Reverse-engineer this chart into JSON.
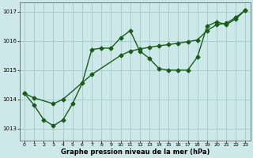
{
  "xlabel": "Graphe pression niveau de la mer (hPa)",
  "ylabel": "",
  "bg_color": "#cce8e8",
  "grid_color": "#aacccc",
  "line_color": "#1a5c1a",
  "marker": "D",
  "markersize": 2.5,
  "linewidth": 1.0,
  "xlim": [
    -0.5,
    23.5
  ],
  "ylim": [
    1012.6,
    1017.3
  ],
  "xticks": [
    0,
    1,
    2,
    3,
    4,
    5,
    6,
    7,
    8,
    9,
    10,
    11,
    12,
    13,
    14,
    15,
    16,
    17,
    18,
    19,
    20,
    21,
    22,
    23
  ],
  "yticks": [
    1013,
    1014,
    1015,
    1016,
    1017
  ],
  "line1_x": [
    0,
    1,
    2,
    3,
    4,
    5,
    6,
    7,
    8,
    9,
    10,
    11,
    12,
    13,
    14,
    15,
    16,
    17,
    18,
    19,
    20,
    21,
    22,
    23
  ],
  "line1_y": [
    1014.2,
    1013.8,
    1013.3,
    1013.1,
    1013.3,
    1013.85,
    1014.55,
    1015.7,
    1015.75,
    1015.75,
    1016.1,
    1016.35,
    1015.65,
    1015.4,
    1015.05,
    1015.0,
    1015.0,
    1015.0,
    1015.45,
    1016.5,
    1016.65,
    1016.55,
    1016.75,
    1017.05
  ],
  "line2_x": [
    0,
    1,
    3,
    4,
    7,
    10,
    11,
    12,
    13,
    14,
    15,
    16,
    17,
    18,
    19,
    20,
    21,
    22,
    23
  ],
  "line2_y": [
    1014.2,
    1014.05,
    1013.85,
    1014.0,
    1014.85,
    1015.5,
    1015.65,
    1015.72,
    1015.78,
    1015.83,
    1015.87,
    1015.92,
    1015.97,
    1016.03,
    1016.35,
    1016.55,
    1016.6,
    1016.8,
    1017.05
  ]
}
